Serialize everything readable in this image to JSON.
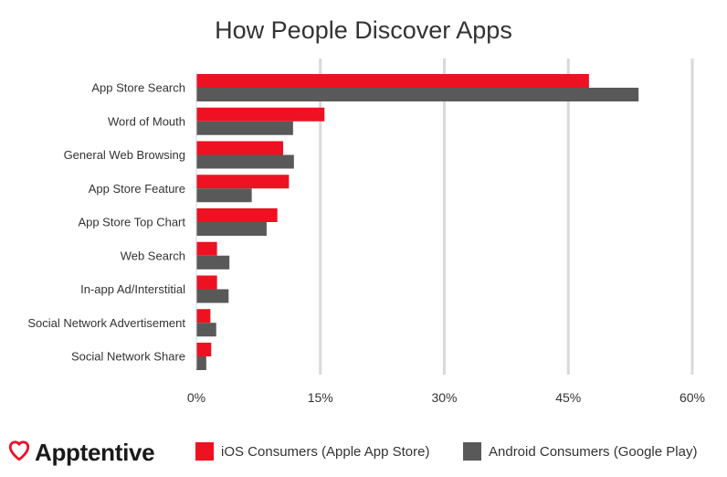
{
  "chart_data": {
    "type": "bar",
    "orientation": "horizontal",
    "title": "How People Discover Apps",
    "categories": [
      "App Store Search",
      "Word of Mouth",
      "General Web Browsing",
      "App Store Feature",
      "App Store Top Chart",
      "Web Search",
      "In-app Ad/Interstitial",
      "Social Network Advertisement",
      "Social Network Share"
    ],
    "series": [
      {
        "name": "iOS Consumers (Apple App Store)",
        "color": "#ee1122",
        "values": [
          47.5,
          15.5,
          10.5,
          11.2,
          9.8,
          2.5,
          2.5,
          1.7,
          1.8
        ]
      },
      {
        "name": "Android Consumers (Google Play)",
        "color": "#595959",
        "values": [
          53.5,
          11.7,
          11.8,
          6.7,
          8.5,
          4.0,
          3.9,
          2.4,
          1.2
        ]
      }
    ],
    "xlim": [
      0,
      60
    ],
    "xticks": [
      "0%",
      "15%",
      "30%",
      "45%",
      "60%"
    ],
    "grid": "vertical",
    "legend_position": "bottom"
  },
  "footer": {
    "brand": "Apptentive",
    "logo_icon": "heart-icon",
    "brand_color": "#e8112d"
  }
}
